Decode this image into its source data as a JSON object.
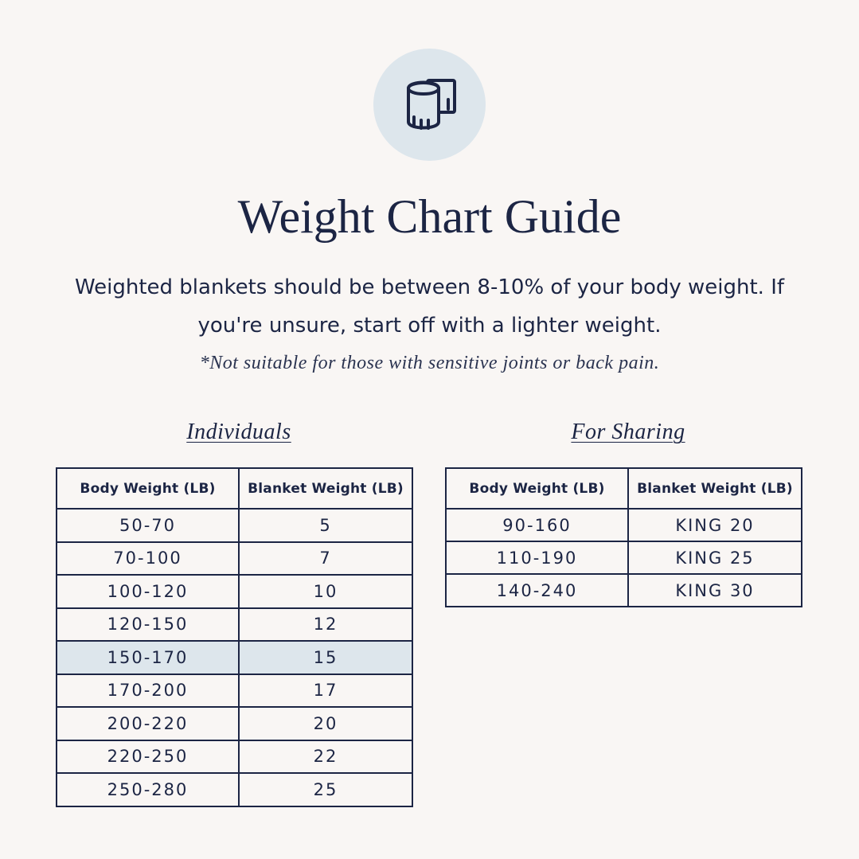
{
  "icon": {
    "name": "blanket-roll-icon",
    "circle_color": "#dde6ec"
  },
  "title": "Weight Chart Guide",
  "intro": "Weighted blankets should be between 8-10% of your body weight. If you're unsure, start off with a lighter weight.",
  "note": "*Not suitable for those with sensitive joints or back pain.",
  "colors": {
    "background": "#f9f6f4",
    "text": "#1c2544",
    "highlight": "#dde6ec"
  },
  "individuals": {
    "heading": "Individuals",
    "headers": [
      "Body Weight (LB)",
      "Blanket Weight (LB)"
    ],
    "rows": [
      {
        "body": "50-70",
        "blanket": "5"
      },
      {
        "body": "70-100",
        "blanket": "7"
      },
      {
        "body": "100-120",
        "blanket": "10"
      },
      {
        "body": "120-150",
        "blanket": "12"
      },
      {
        "body": "150-170",
        "blanket": "15"
      },
      {
        "body": "170-200",
        "blanket": "17"
      },
      {
        "body": "200-220",
        "blanket": "20"
      },
      {
        "body": "220-250",
        "blanket": "22"
      },
      {
        "body": "250-280",
        "blanket": "25"
      }
    ],
    "highlighted_row": "150-170"
  },
  "sharing": {
    "heading": "For Sharing",
    "headers": [
      "Body Weight (LB)",
      "Blanket Weight (LB)"
    ],
    "rows": [
      {
        "body": "90-160",
        "blanket": "KING 20"
      },
      {
        "body": "110-190",
        "blanket": "KING 25"
      },
      {
        "body": "140-240",
        "blanket": "KING 30"
      }
    ]
  }
}
